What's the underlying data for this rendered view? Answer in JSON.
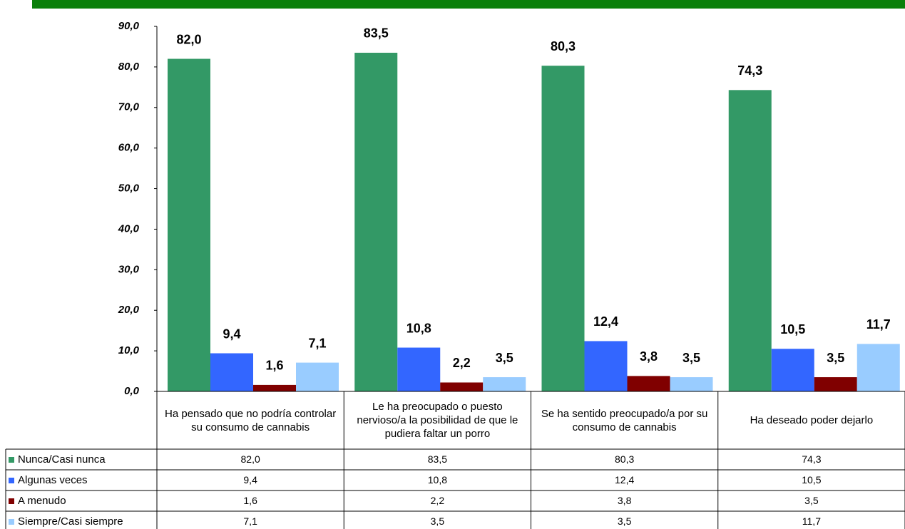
{
  "chart_data": {
    "type": "bar",
    "categories": [
      "Ha pensado que no podría controlar su consumo de cannabis",
      "Le ha preocupado o puesto nervioso/a la posibilidad de que le pudiera faltar un porro",
      "Se ha sentido preocupado/a por su consumo de cannabis",
      "Ha deseado poder dejarlo"
    ],
    "series": [
      {
        "name": "Nunca/Casi nunca",
        "color": "#339966",
        "values": [
          82.0,
          83.5,
          80.3,
          74.3
        ],
        "value_labels": [
          "82,0",
          "83,5",
          "80,3",
          "74,3"
        ]
      },
      {
        "name": "Algunas veces",
        "color": "#3366ff",
        "values": [
          9.4,
          10.8,
          12.4,
          10.5
        ],
        "value_labels": [
          "9,4",
          "10,8",
          "12,4",
          "10,5"
        ]
      },
      {
        "name": "A menudo",
        "color": "#800000",
        "values": [
          1.6,
          2.2,
          3.8,
          3.5
        ],
        "value_labels": [
          "1,6",
          "2,2",
          "3,8",
          "3,5"
        ]
      },
      {
        "name": "Siempre/Casi siempre",
        "color": "#99ccff",
        "values": [
          7.1,
          3.5,
          3.5,
          11.7
        ],
        "value_labels": [
          "7,1",
          "3,5",
          "3,5",
          "11,7"
        ]
      }
    ],
    "ylim": [
      0,
      90
    ],
    "yticks": [
      {
        "value": 0,
        "label": "0,0"
      },
      {
        "value": 10,
        "label": "10,0"
      },
      {
        "value": 20,
        "label": "20,0"
      },
      {
        "value": 30,
        "label": "30,0"
      },
      {
        "value": 40,
        "label": "40,0"
      },
      {
        "value": 50,
        "label": "50,0"
      },
      {
        "value": 60,
        "label": "60,0"
      },
      {
        "value": 70,
        "label": "70,0"
      },
      {
        "value": 80,
        "label": "80,0"
      },
      {
        "value": 90,
        "label": "90,0"
      }
    ],
    "grid": false,
    "legend": "table"
  }
}
